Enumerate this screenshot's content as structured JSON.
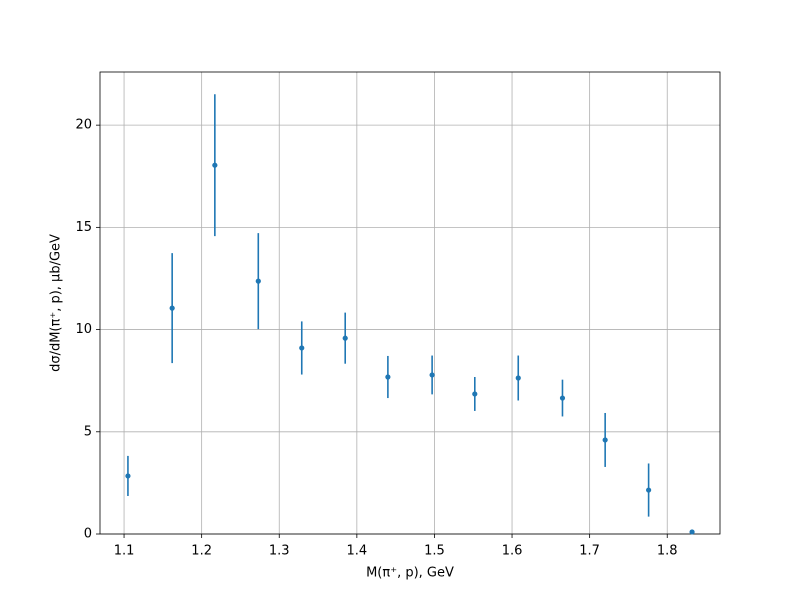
{
  "chart_data": {
    "type": "scatter",
    "x_label": "M(π⁺, p), GeV",
    "y_label": "dσ/dM(π⁺, p), μb/GeV",
    "x": [
      1.105,
      1.162,
      1.217,
      1.273,
      1.329,
      1.385,
      1.44,
      1.497,
      1.552,
      1.608,
      1.665,
      1.72,
      1.776,
      1.832
    ],
    "series": [
      {
        "color": "#1f77b4",
        "values": [
          2.84,
          11.05,
          18.04,
          12.37,
          9.1,
          9.58,
          7.68,
          7.78,
          6.85,
          7.63,
          6.65,
          4.6,
          2.15,
          0.1
        ],
        "errors": [
          0.98,
          2.69,
          3.47,
          2.35,
          1.3,
          1.25,
          1.03,
          0.95,
          0.83,
          1.1,
          0.9,
          1.32,
          1.3,
          0.05
        ]
      }
    ],
    "xlim": [
      1.069,
      1.868
    ],
    "ylim": [
      0,
      22.6
    ],
    "xticks": [
      1.1,
      1.2,
      1.3,
      1.4,
      1.5,
      1.6,
      1.7,
      1.8
    ],
    "yticks": [
      0,
      5,
      10,
      15,
      20
    ],
    "grid": true
  }
}
